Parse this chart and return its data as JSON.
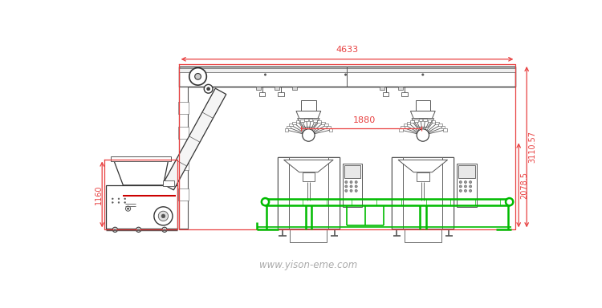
{
  "bg_color": "#ffffff",
  "line_color": "#555555",
  "line_dark": "#333333",
  "red_color": "#e84040",
  "green_color": "#00bb00",
  "watermark": "www.yison-eme.com",
  "dim_4633": "4633",
  "dim_1880": "1880",
  "dim_1160": "1160",
  "dim_2078": "2078.5",
  "dim_3110": "3110.57",
  "fig_width": 7.5,
  "fig_height": 3.84
}
